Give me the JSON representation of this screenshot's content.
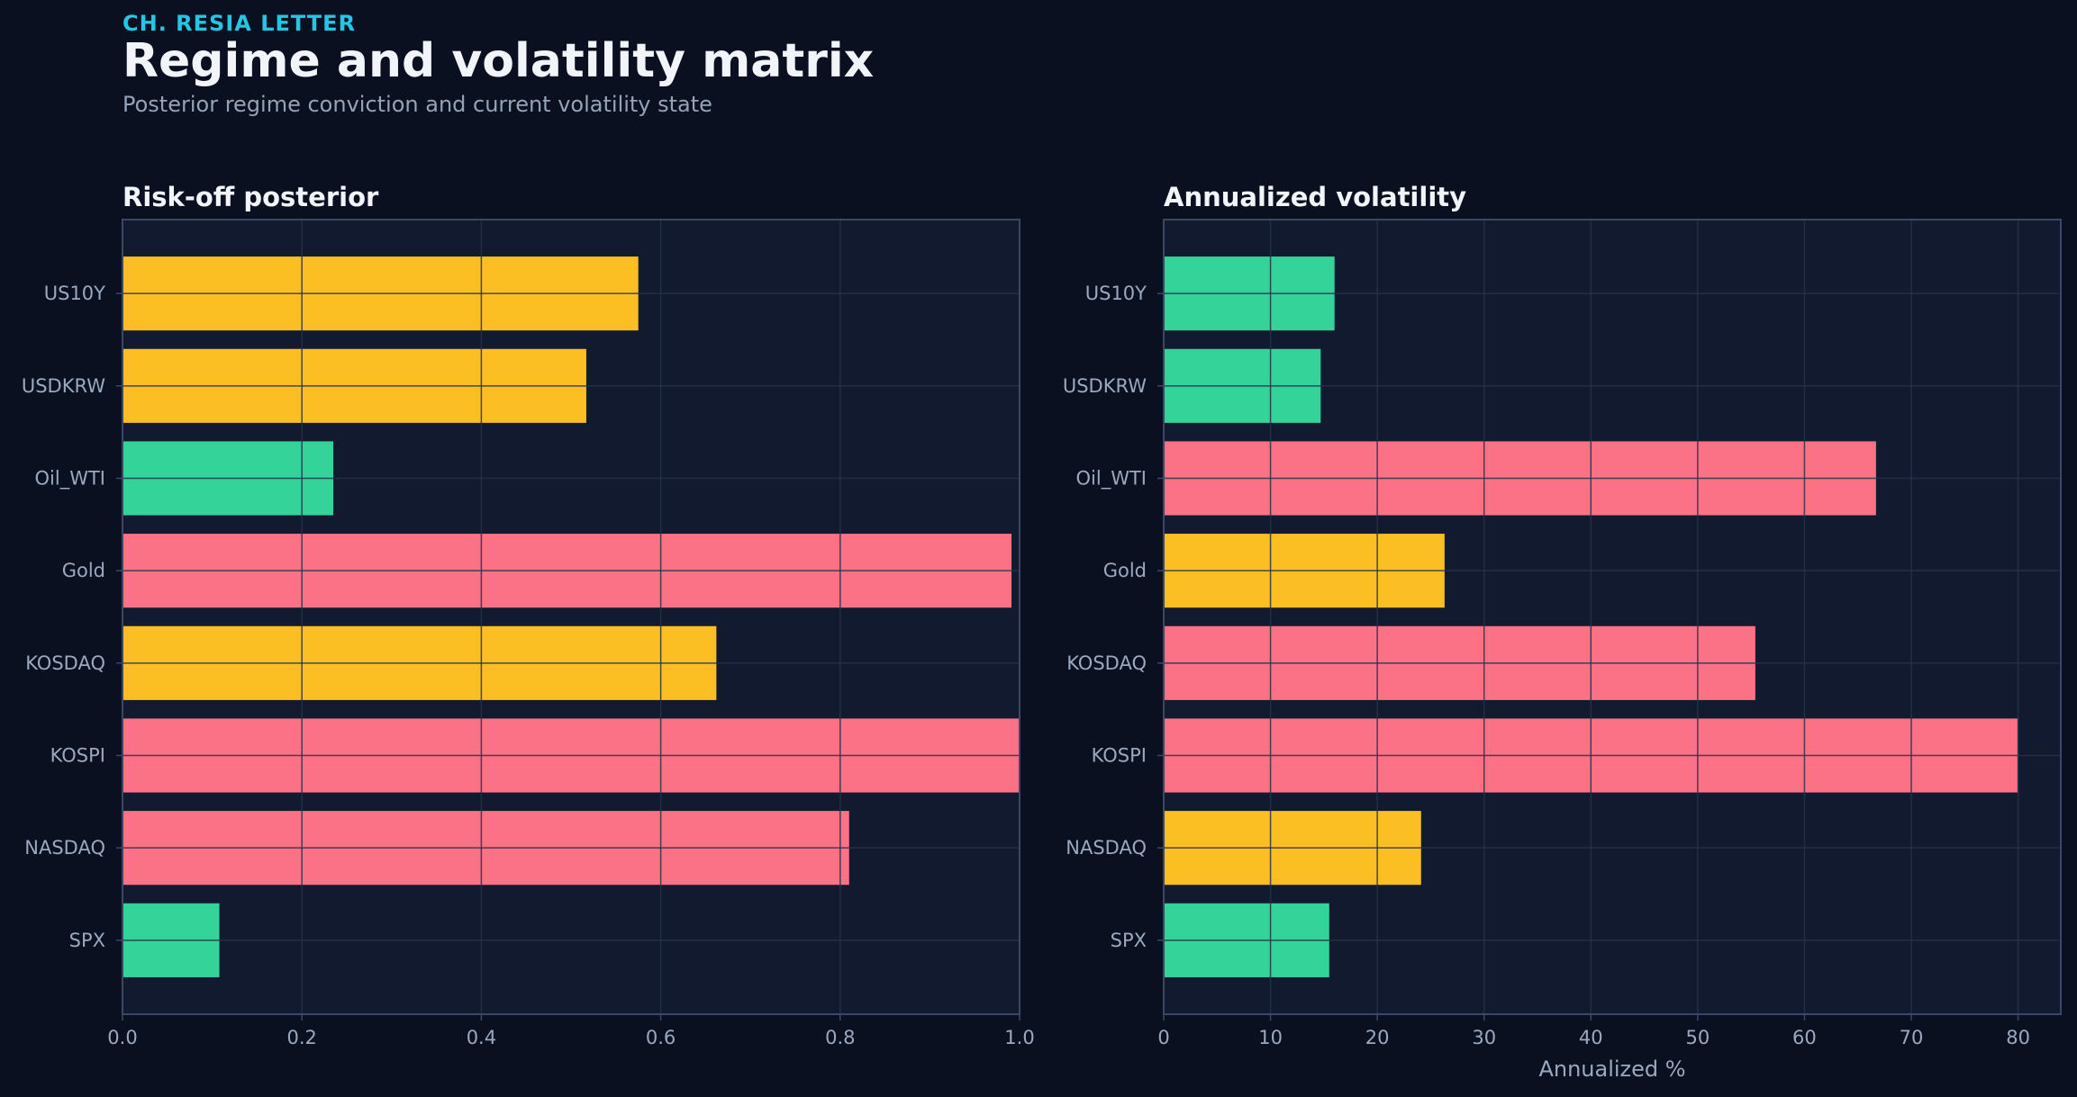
{
  "header": {
    "eyebrow": "CH. RESIA LETTER",
    "title": "Regime and volatility matrix",
    "subtitle": "Posterior regime conviction and current volatility state"
  },
  "colors": {
    "background": "#0a1020",
    "plot_background": "#111a2e",
    "grid": "#26324a",
    "frame": "#3a4866",
    "green": "#34d399",
    "amber": "#fbbf24",
    "red": "#fb7185"
  },
  "chart_data": [
    {
      "id": "riskoff",
      "type": "bar",
      "orientation": "horizontal",
      "title": "Risk-off posterior",
      "xlabel": "",
      "xlim": [
        0,
        1.0
      ],
      "xticks": [
        0.0,
        0.2,
        0.4,
        0.6,
        0.8,
        1.0
      ],
      "xtick_labels": [
        "0.0",
        "0.2",
        "0.4",
        "0.6",
        "0.8",
        "1.0"
      ],
      "grid": true,
      "categories": [
        "US10Y",
        "USDKRW",
        "Oil_WTI",
        "Gold",
        "KOSDAQ",
        "KOSPI",
        "NASDAQ",
        "SPX"
      ],
      "values": [
        0.575,
        0.517,
        0.235,
        0.991,
        0.662,
        1.0,
        0.81,
        0.108
      ],
      "bar_colors": [
        "amber",
        "amber",
        "green",
        "red",
        "amber",
        "red",
        "red",
        "green"
      ]
    },
    {
      "id": "vol",
      "type": "bar",
      "orientation": "horizontal",
      "title": "Annualized volatility",
      "xlabel": "Annualized %",
      "xlim": [
        0,
        84
      ],
      "xticks": [
        0,
        10,
        20,
        30,
        40,
        50,
        60,
        70,
        80
      ],
      "xtick_labels": [
        "0",
        "10",
        "20",
        "30",
        "40",
        "50",
        "60",
        "70",
        "80"
      ],
      "grid": true,
      "categories": [
        "US10Y",
        "USDKRW",
        "Oil_WTI",
        "Gold",
        "KOSDAQ",
        "KOSPI",
        "NASDAQ",
        "SPX"
      ],
      "values": [
        16.0,
        14.7,
        66.7,
        26.3,
        55.4,
        80.0,
        24.1,
        15.5
      ],
      "bar_colors": [
        "green",
        "green",
        "red",
        "amber",
        "red",
        "red",
        "amber",
        "green"
      ]
    }
  ]
}
